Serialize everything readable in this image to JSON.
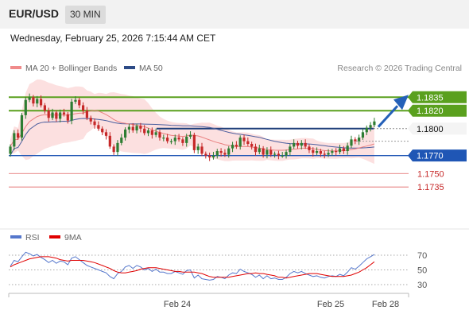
{
  "header": {
    "symbol": "EUR/USD",
    "timeframe": "30 MIN",
    "timestamp": "Wednesday, February 25, 2026 7:15:44 AM CET"
  },
  "legend": {
    "ma20_label": "MA 20 + Bollinger Bands",
    "ma50_label": "MA 50",
    "rsi_label": "RSI",
    "rsi_ma_label": "9MA",
    "research": "Research © 2026 Trading Central"
  },
  "colors": {
    "up": "#2e7d32",
    "down": "#c62828",
    "resistance": "#5aa01e",
    "support": "#1f56b5",
    "pivot": "#1f3f7a",
    "ma20": "#e98080",
    "ma50": "#4b5e9e",
    "bands": "#fbd6d6",
    "rsi": "#5577cc",
    "rsi_ma": "#e00000",
    "target_arrow": "#2460b8"
  },
  "chart_data": [
    {
      "type": "candlestick",
      "title": "EUR/USD",
      "timeframe": "30 MIN",
      "ylim": [
        1.169,
        1.1845
      ],
      "x_tick_labels": [
        "Feb 24",
        "Feb 25",
        "Feb 28"
      ],
      "overlays": [
        "MA 20 + Bollinger Bands",
        "MA 50"
      ],
      "price_levels": [
        {
          "value": 1.1835,
          "label": "1.1835",
          "kind": "resistance"
        },
        {
          "value": 1.182,
          "label": "1.1820",
          "kind": "resistance"
        },
        {
          "value": 1.18,
          "label": "1.1800",
          "kind": "pivot"
        },
        {
          "value": 1.177,
          "label": "1.1770",
          "kind": "support"
        },
        {
          "value": 1.175,
          "label": "1.1750",
          "kind": "support"
        },
        {
          "value": 1.1735,
          "label": "1.1735",
          "kind": "support"
        }
      ],
      "target_arrow": {
        "from": 1.1802,
        "to": 1.1835
      },
      "close": [
        1.178,
        1.1795,
        1.179,
        1.1815,
        1.1832,
        1.1835,
        1.1828,
        1.1833,
        1.1826,
        1.182,
        1.1812,
        1.1818,
        1.1811,
        1.1818,
        1.1816,
        1.1809,
        1.183,
        1.1832,
        1.1826,
        1.182,
        1.1812,
        1.1808,
        1.1804,
        1.18,
        1.1796,
        1.1792,
        1.178,
        1.1774,
        1.1784,
        1.179,
        1.1799,
        1.1802,
        1.1798,
        1.1803,
        1.18,
        1.1795,
        1.1798,
        1.1793,
        1.1796,
        1.179,
        1.179,
        1.1786,
        1.1786,
        1.179,
        1.1788,
        1.1784,
        1.1791,
        1.1793,
        1.1776,
        1.178,
        1.1772,
        1.177,
        1.1768,
        1.177,
        1.1775,
        1.1773,
        1.1771,
        1.1778,
        1.1782,
        1.178,
        1.179,
        1.1786,
        1.1783,
        1.178,
        1.1774,
        1.1778,
        1.1771,
        1.1776,
        1.1771,
        1.1772,
        1.177,
        1.177,
        1.1774,
        1.178,
        1.1784,
        1.1781,
        1.1784,
        1.178,
        1.1776,
        1.1773,
        1.1775,
        1.1772,
        1.1771,
        1.1773,
        1.1775,
        1.1774,
        1.1778,
        1.1775,
        1.1781,
        1.1788,
        1.1786,
        1.179,
        1.1796,
        1.1801,
        1.1804,
        1.1808
      ],
      "rsi": {
        "levels": [
          70,
          50,
          30
        ],
        "rsi": [
          55,
          63,
          61,
          68,
          74,
          72,
          69,
          71,
          67,
          64,
          60,
          63,
          59,
          62,
          61,
          57,
          66,
          68,
          64,
          60,
          56,
          54,
          52,
          50,
          48,
          46,
          41,
          38,
          45,
          48,
          54,
          56,
          52,
          56,
          54,
          50,
          52,
          48,
          51,
          47,
          47,
          45,
          45,
          48,
          46,
          44,
          49,
          50,
          39,
          43,
          38,
          37,
          36,
          37,
          41,
          40,
          38,
          43,
          46,
          45,
          51,
          48,
          46,
          44,
          40,
          43,
          38,
          42,
          38,
          39,
          37,
          37,
          40,
          45,
          48,
          46,
          48,
          45,
          43,
          41,
          42,
          40,
          39,
          41,
          42,
          41,
          44,
          42,
          47,
          53,
          51,
          55,
          60,
          65,
          68,
          71
        ],
        "ma9": [
          54,
          57,
          59,
          61,
          63,
          65,
          66,
          67,
          68,
          68,
          68,
          67,
          66,
          64,
          63,
          62,
          63,
          63,
          63,
          63,
          62,
          61,
          60,
          58,
          56,
          54,
          52,
          49,
          47,
          46,
          46,
          47,
          48,
          49,
          51,
          52,
          53,
          53,
          53,
          52,
          51,
          50,
          49,
          48,
          48,
          47,
          47,
          47,
          47,
          46,
          45,
          43,
          41,
          40,
          40,
          40,
          40,
          40,
          41,
          42,
          43,
          44,
          45,
          45,
          46,
          45,
          45,
          44,
          43,
          42,
          40,
          40,
          39,
          40,
          41,
          42,
          43,
          44,
          45,
          45,
          45,
          44,
          43,
          42,
          41,
          41,
          41,
          41,
          42,
          43,
          45,
          47,
          50,
          53,
          57,
          61
        ]
      }
    }
  ]
}
